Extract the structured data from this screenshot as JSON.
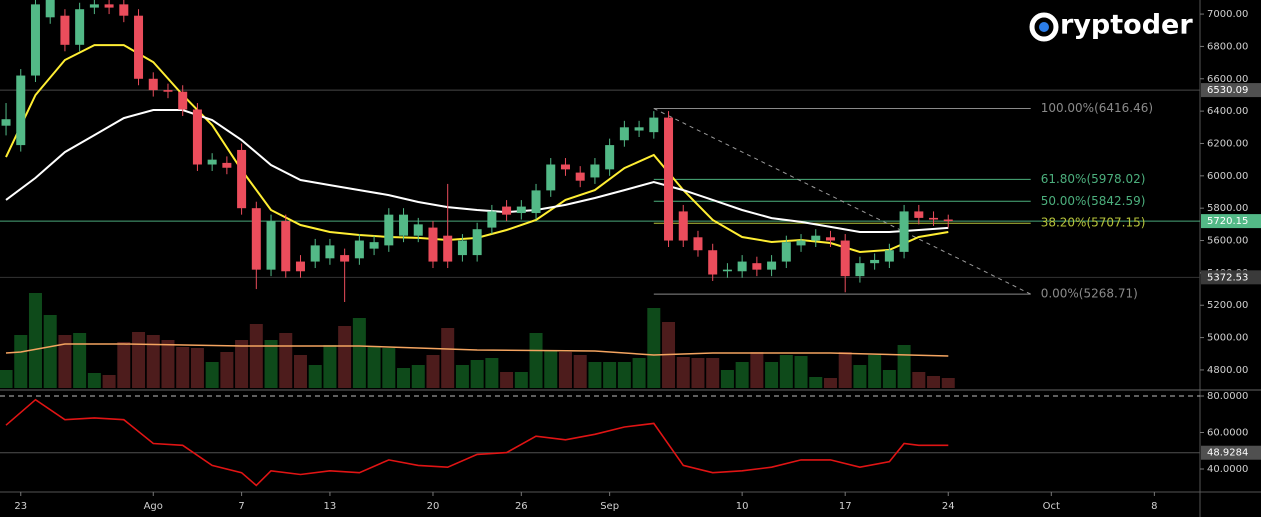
{
  "chart_data": {
    "type": "candlestick",
    "logo": "ryptoder",
    "xlim": [
      -0.41,
      81.1
    ],
    "xticks": [
      {
        "value": 1,
        "label": "23"
      },
      {
        "value": 10,
        "label": "Ago"
      },
      {
        "value": 16,
        "label": "7"
      },
      {
        "value": 22,
        "label": "13"
      },
      {
        "value": 29,
        "label": "20"
      },
      {
        "value": 35,
        "label": "26"
      },
      {
        "value": 41,
        "label": "Sep"
      },
      {
        "value": 50,
        "label": "10"
      },
      {
        "value": 57,
        "label": "17"
      },
      {
        "value": 64,
        "label": "24"
      },
      {
        "value": 71,
        "label": "Oct"
      },
      {
        "value": 78,
        "label": "8"
      }
    ],
    "ylim": [
      4676,
      7087
    ],
    "yticks": [
      {
        "value": 4800,
        "label": "4800.00"
      },
      {
        "value": 5000,
        "label": "5000.00"
      },
      {
        "value": 5200,
        "label": "5200.00"
      },
      {
        "value": 5400,
        "label": "5400.00"
      },
      {
        "value": 5600,
        "label": "5600.00"
      },
      {
        "value": 5800,
        "label": "5800.00"
      },
      {
        "value": 6000,
        "label": "6000.00"
      },
      {
        "value": 6200,
        "label": "6200.00"
      },
      {
        "value": 6400,
        "label": "6400.00"
      },
      {
        "value": 6600,
        "label": "6600.00"
      },
      {
        "value": 6800,
        "label": "6800.00"
      },
      {
        "value": 7000,
        "label": "7000.00"
      }
    ],
    "up_color": "#53b987",
    "down_color": "#eb4d5c",
    "open": [
      6310,
      6190,
      6620,
      6980,
      6990,
      6810,
      7040,
      7060,
      7060,
      6990,
      6600,
      6530,
      6520,
      6410,
      6070,
      6080,
      6160,
      5800,
      5420,
      5720,
      5470,
      5470,
      5490,
      5510,
      5490,
      5550,
      5570,
      5630,
      5630,
      5680,
      5630,
      5510,
      5510,
      5680,
      5810,
      5770,
      5770,
      5910,
      6070,
      6020,
      5990,
      6040,
      6220,
      6280,
      6270,
      6360,
      5780,
      5620,
      5540,
      5410,
      5410,
      5460,
      5420,
      5470,
      5570,
      5600,
      5620,
      5600,
      5380,
      5460,
      5470,
      5530,
      5780,
      5740,
      5730
    ],
    "high": [
      6450,
      6660,
      7100,
      7130,
      7030,
      7070,
      7100,
      7100,
      7100,
      7030,
      6640,
      6570,
      6560,
      6450,
      6140,
      6120,
      6200,
      5840,
      5760,
      5760,
      5510,
      5610,
      5610,
      5550,
      5640,
      5630,
      5800,
      5800,
      5740,
      5720,
      5950,
      5640,
      5710,
      5820,
      5850,
      5850,
      5950,
      6110,
      6110,
      6060,
      6110,
      6230,
      6340,
      6340,
      6400,
      6400,
      5820,
      5660,
      5580,
      5460,
      5510,
      5500,
      5510,
      5630,
      5640,
      5670,
      5660,
      5640,
      5500,
      5520,
      5580,
      5820,
      5820,
      5780,
      5760
    ],
    "low": [
      6250,
      6150,
      6580,
      6940,
      6770,
      6770,
      7000,
      7000,
      6950,
      6560,
      6490,
      6480,
      6370,
      6030,
      6030,
      6010,
      5760,
      5300,
      5380,
      5370,
      5370,
      5430,
      5450,
      5220,
      5450,
      5510,
      5530,
      5590,
      5590,
      5430,
      5430,
      5470,
      5470,
      5640,
      5720,
      5730,
      5730,
      5870,
      6000,
      5930,
      5950,
      6000,
      6180,
      6240,
      6230,
      5560,
      5560,
      5500,
      5350,
      5370,
      5370,
      5380,
      5380,
      5430,
      5530,
      5560,
      5560,
      5280,
      5340,
      5420,
      5430,
      5490,
      5700,
      5690,
      5680
    ],
    "close": [
      6350,
      6620,
      7060,
      7090,
      6810,
      7030,
      7060,
      7040,
      6990,
      6600,
      6530,
      6520,
      6410,
      6070,
      6100,
      6050,
      5800,
      5420,
      5720,
      5410,
      5410,
      5570,
      5570,
      5470,
      5600,
      5590,
      5760,
      5760,
      5700,
      5470,
      5470,
      5600,
      5670,
      5780,
      5760,
      5810,
      5910,
      6070,
      6040,
      5970,
      6070,
      6190,
      6300,
      6300,
      6360,
      5600,
      5600,
      5540,
      5390,
      5420,
      5470,
      5420,
      5470,
      5590,
      5600,
      5630,
      5600,
      5380,
      5460,
      5480,
      5540,
      5780,
      5740,
      5730,
      5720
    ],
    "lines": [
      {
        "color": "#ffee33",
        "x": [
          0,
          2,
          4,
          6,
          8,
          10,
          12,
          14,
          16,
          18,
          20,
          22,
          24,
          26,
          28,
          30,
          32,
          34,
          36,
          38,
          40,
          42,
          44,
          46,
          48,
          50,
          52,
          54,
          56,
          58,
          60,
          62,
          64
        ],
        "values": [
          6116,
          6500,
          6716,
          6808,
          6808,
          6703,
          6500,
          6314,
          6036,
          5789,
          5696,
          5653,
          5634,
          5622,
          5616,
          5603,
          5616,
          5665,
          5727,
          5851,
          5912,
          6048,
          6129,
          5912,
          5727,
          5622,
          5591,
          5603,
          5585,
          5529,
          5542,
          5622,
          5653
        ]
      },
      {
        "color": "#ffffff",
        "x": [
          0,
          2,
          4,
          6,
          8,
          10,
          12,
          14,
          16,
          18,
          20,
          22,
          24,
          26,
          28,
          30,
          32,
          34,
          36,
          38,
          40,
          42,
          44,
          46,
          48,
          50,
          52,
          54,
          56,
          58,
          60,
          62,
          64
        ],
        "values": [
          5851,
          5987,
          6147,
          6252,
          6357,
          6407,
          6407,
          6345,
          6221,
          6067,
          5974,
          5943,
          5912,
          5881,
          5838,
          5807,
          5789,
          5776,
          5789,
          5820,
          5863,
          5912,
          5962,
          5912,
          5851,
          5789,
          5739,
          5715,
          5684,
          5653,
          5653,
          5665,
          5678
        ]
      }
    ],
    "volume": {
      "vlim": [
        0,
        100
      ],
      "up_color": "#0e4a1a",
      "down_color": "#4d1c1c",
      "values": [
        18,
        53,
        95,
        73,
        53,
        55,
        15,
        13,
        46,
        56,
        53,
        48,
        41,
        40,
        26,
        36,
        48,
        64,
        48,
        55,
        33,
        23,
        43,
        62,
        70,
        41,
        40,
        20,
        23,
        33,
        60,
        23,
        28,
        30,
        16,
        16,
        55,
        38,
        36,
        33,
        26,
        26,
        26,
        30,
        80,
        66,
        31,
        30,
        30,
        18,
        26,
        36,
        26,
        33,
        32,
        11,
        10,
        36,
        23,
        33,
        18,
        43,
        16,
        12,
        10
      ],
      "average": {
        "color": "#f4a460",
        "x": [
          0,
          1,
          4,
          8,
          16,
          24,
          32,
          40,
          44,
          48,
          56,
          64
        ],
        "values": [
          35,
          36,
          44,
          44,
          42,
          42,
          38,
          37,
          33,
          35,
          35,
          32
        ]
      }
    },
    "price_markers": [
      {
        "value": 6530.09,
        "color": "#505050"
      },
      {
        "value": 5720.15,
        "color": "#53b987"
      },
      {
        "value": 5372.53,
        "color": "#3a3a3a"
      }
    ],
    "fibonacci": {
      "x": [
        44,
        69.6
      ],
      "levels": [
        {
          "value": 6416.46,
          "label": "100.00%(6416.46)",
          "color": "#8a8a8a"
        },
        {
          "value": 5978.02,
          "label": "61.80%(5978.02)",
          "color": "#4caf7d"
        },
        {
          "value": 5842.59,
          "label": "50.00%(5842.59)",
          "color": "#4caf7d"
        },
        {
          "value": 5707.15,
          "label": "38.20%(5707.15)",
          "color": "#b5c23a"
        },
        {
          "value": 5268.71,
          "label": "0.00%(5268.71)",
          "color": "#8a8a8a"
        }
      ]
    },
    "rsi": {
      "ylim": [
        27.4,
        82.2
      ],
      "yticks": [
        {
          "value": 80,
          "label": "80.0000"
        },
        {
          "value": 60,
          "label": "60.0000"
        },
        {
          "value": 40,
          "label": "40.0000"
        }
      ],
      "color": "#e01414",
      "x": [
        0,
        2,
        4,
        6,
        8,
        10,
        12,
        14,
        16,
        17,
        18,
        20,
        22,
        24,
        26,
        28,
        30,
        32,
        34,
        36,
        38,
        40,
        42,
        44,
        46,
        48,
        50,
        52,
        54,
        56,
        58,
        60,
        61,
        62,
        64
      ],
      "values": [
        64,
        78,
        67,
        68,
        67,
        54,
        53,
        42,
        38,
        31,
        39,
        37,
        39,
        38,
        45,
        42,
        41,
        48,
        49,
        58,
        56,
        59,
        63,
        65,
        42,
        38,
        39,
        41,
        45,
        45,
        41,
        44,
        54,
        53,
        53
      ],
      "marker": 48.9284,
      "marker_color": "#505050"
    }
  }
}
